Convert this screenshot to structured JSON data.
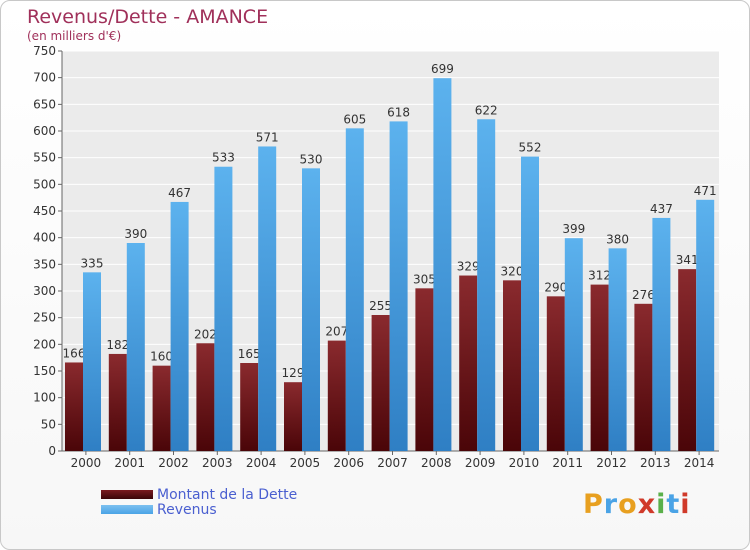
{
  "header": {
    "title": "Revenus/Dette - AMANCE",
    "subtitle": "(en milliers d'€)"
  },
  "chart_data": {
    "type": "bar",
    "title": "Revenus/Dette - AMANCE",
    "subtitle": "(en milliers d'€)",
    "categories": [
      "2000",
      "2001",
      "2002",
      "2003",
      "2004",
      "2005",
      "2006",
      "2007",
      "2008",
      "2009",
      "2010",
      "2011",
      "2012",
      "2013",
      "2014"
    ],
    "series": [
      {
        "name": "Montant de la Dette",
        "color": "#7a1a1f",
        "values": [
          166,
          182,
          160,
          202,
          165,
          129,
          207,
          255,
          305,
          329,
          320,
          290,
          312,
          276,
          341
        ]
      },
      {
        "name": "Revenus",
        "color": "#4aa3e6",
        "values": [
          335,
          390,
          467,
          533,
          571,
          530,
          605,
          618,
          699,
          622,
          552,
          399,
          380,
          437,
          471
        ]
      }
    ],
    "ylim": [
      0,
      750
    ],
    "yticks": [
      0,
      50,
      100,
      150,
      200,
      250,
      300,
      350,
      400,
      450,
      500,
      550,
      600,
      650,
      700,
      750
    ],
    "grid": true,
    "legend_position": "bottom-left"
  },
  "legend": {
    "items": [
      {
        "label": "Montant de la Dette",
        "color": "#7a1a1f"
      },
      {
        "label": "Revenus",
        "color": "#4aa3e6"
      }
    ]
  },
  "logo": {
    "text": "Proxiti",
    "letters": [
      "P",
      "r",
      "o",
      "x",
      "i",
      "t",
      "i"
    ],
    "colors": [
      "#e8a020",
      "#4aa3e6",
      "#e8a020",
      "#d03a2a",
      "#5ab04a",
      "#4aa3e6",
      "#d03a2a"
    ]
  }
}
